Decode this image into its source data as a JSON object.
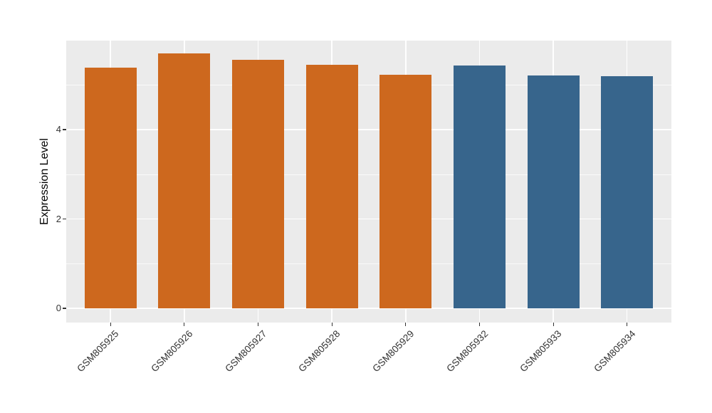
{
  "chart_data": {
    "type": "bar",
    "title": "",
    "xlabel": "",
    "ylabel": "Expression Level",
    "categories": [
      "GSM805925",
      "GSM805926",
      "GSM805927",
      "GSM805928",
      "GSM805929",
      "GSM805932",
      "GSM805933",
      "GSM805934"
    ],
    "values": [
      5.39,
      5.7,
      5.56,
      5.45,
      5.23,
      5.43,
      5.21,
      5.2
    ],
    "bar_colors": [
      "#CD681E",
      "#CD681E",
      "#CD681E",
      "#CD681E",
      "#CD681E",
      "#37658C",
      "#37658C",
      "#37658C"
    ],
    "group_colors": {
      "orange_group": "#CD681E",
      "blue_group": "#37658C"
    },
    "ytick_labels": [
      "0",
      "2",
      "4"
    ],
    "ytick_values": [
      0,
      2,
      4
    ],
    "ytick_minor_values": [
      1,
      3,
      5
    ],
    "ylim": [
      -0.32,
      6.0
    ],
    "x_tick_rotation_deg": 45,
    "grid": "on",
    "legend": "none",
    "panel_background": "#EBEBEB",
    "grid_color": "#FFFFFF",
    "tick_color": "#333333",
    "text_color": "#333333"
  }
}
